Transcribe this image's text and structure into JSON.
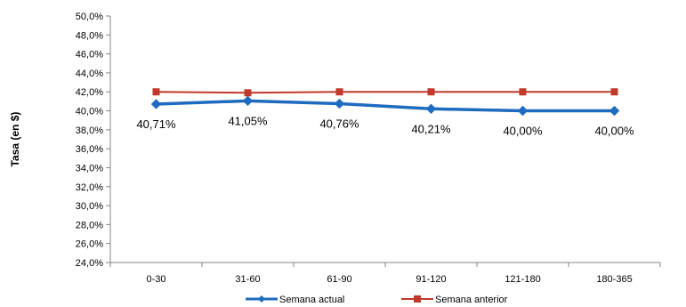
{
  "chart_data": {
    "type": "line",
    "categories": [
      "0-30",
      "31-60",
      "61-90",
      "91-120",
      "121-180",
      "180-365"
    ],
    "ylabel": "Tasa (en $)",
    "xlabel": "",
    "ylim": [
      24.0,
      50.0
    ],
    "ytick_step": 2.0,
    "yticks": [
      "24,0%",
      "26,0%",
      "28,0%",
      "30,0%",
      "32,0%",
      "34,0%",
      "36,0%",
      "38,0%",
      "40,0%",
      "42,0%",
      "44,0%",
      "46,0%",
      "48,0%",
      "50,0%"
    ],
    "grid": false,
    "legend_position": "bottom",
    "series": [
      {
        "name": "Semana actual",
        "values": [
          40.71,
          41.05,
          40.76,
          40.21,
          40.0,
          40.0
        ],
        "data_labels": [
          "40,71%",
          "41,05%",
          "40,76%",
          "40,21%",
          "40,00%",
          "40,00%"
        ],
        "color": "#1f6bbf",
        "marker": "diamond"
      },
      {
        "name": "Semana anterior",
        "values": [
          42.0,
          41.9,
          42.0,
          42.0,
          42.0,
          42.0
        ],
        "color": "#c0392b",
        "marker": "square"
      }
    ]
  }
}
